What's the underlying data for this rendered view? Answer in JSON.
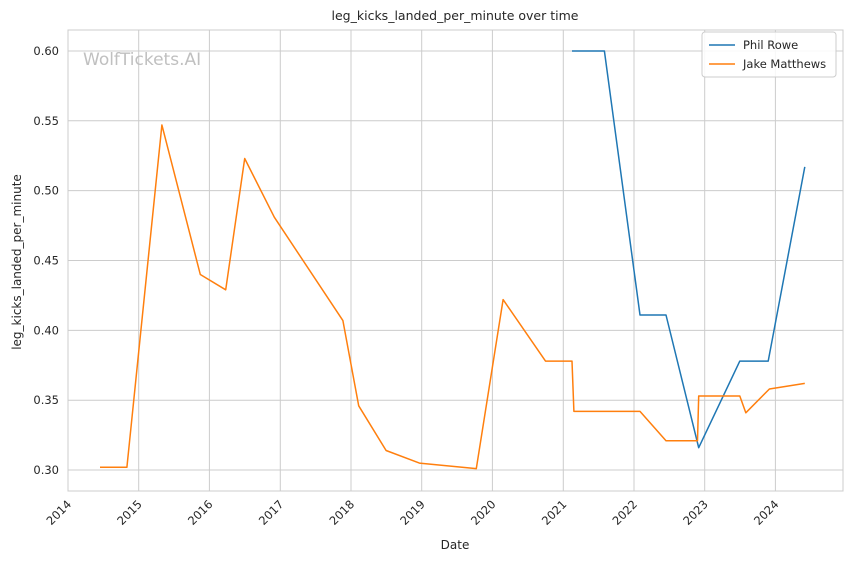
{
  "chart_data": {
    "type": "line",
    "title": "leg_kicks_landed_per_minute over time",
    "xlabel": "Date",
    "ylabel": "leg_kicks_landed_per_minute",
    "watermark": "WolfTickets.AI",
    "x_ticks": [
      "2014",
      "2015",
      "2016",
      "2017",
      "2018",
      "2019",
      "2020",
      "2021",
      "2022",
      "2023",
      "2024"
    ],
    "y_ticks": [
      "0.30",
      "0.35",
      "0.40",
      "0.45",
      "0.50",
      "0.55",
      "0.60"
    ],
    "xlim": [
      "2014-01-01",
      "2024-12-15"
    ],
    "ylim": [
      0.285,
      0.615
    ],
    "grid": true,
    "legend_position": "top-right",
    "series": [
      {
        "name": "Phil Rowe",
        "color": "#1f77b4",
        "x": [
          "2021-02-15",
          "2021-08-01",
          "2022-02-01",
          "2022-06-15",
          "2022-12-01",
          "2023-07-01",
          "2023-11-25",
          "2024-06-01"
        ],
        "y": [
          0.6,
          0.6,
          0.411,
          0.411,
          0.316,
          0.378,
          0.378,
          0.517
        ]
      },
      {
        "name": "Jake Matthews",
        "color": "#ff7f0e",
        "x": [
          "2014-06-15",
          "2014-11-01",
          "2015-05-01",
          "2015-11-15",
          "2016-03-25",
          "2016-07-01",
          "2016-12-01",
          "2017-11-20",
          "2018-02-10",
          "2018-07-01",
          "2018-12-20",
          "2019-10-10",
          "2020-02-25",
          "2020-10-01",
          "2021-02-15",
          "2021-02-25",
          "2022-02-01",
          "2022-06-15",
          "2022-11-25",
          "2022-12-01",
          "2023-07-01",
          "2023-08-01",
          "2023-12-01",
          "2024-06-01"
        ],
        "y": [
          0.302,
          0.302,
          0.547,
          0.44,
          0.429,
          0.523,
          0.481,
          0.407,
          0.346,
          0.314,
          0.305,
          0.301,
          0.422,
          0.378,
          0.378,
          0.342,
          0.342,
          0.321,
          0.321,
          0.353,
          0.353,
          0.341,
          0.358,
          0.362
        ]
      }
    ]
  }
}
